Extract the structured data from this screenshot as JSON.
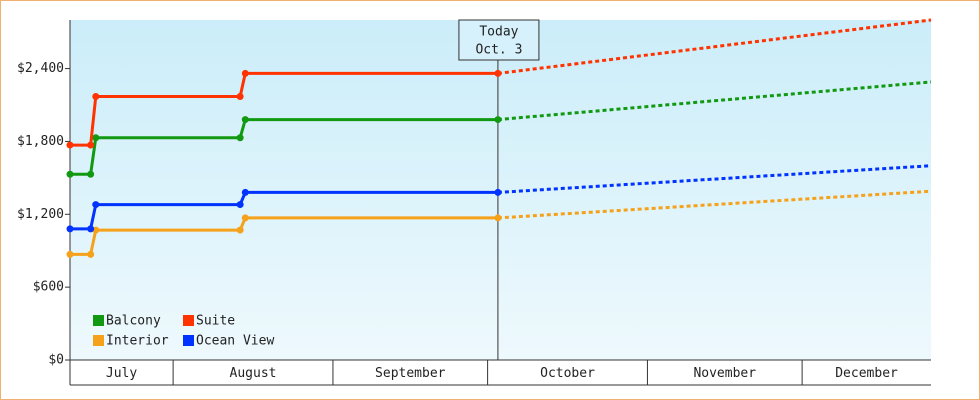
{
  "chart_data": {
    "type": "line",
    "categories": [
      "July",
      "August",
      "September",
      "October",
      "November",
      "December"
    ],
    "category_edges": [
      11,
      31,
      62,
      92,
      123,
      153,
      178
    ],
    "xlim": [
      11,
      178
    ],
    "ylim": [
      0,
      2800
    ],
    "yticks": [
      {
        "value": 0,
        "label": "$0"
      },
      {
        "value": 600,
        "label": "$600"
      },
      {
        "value": 1200,
        "label": "$1,200"
      },
      {
        "value": 1800,
        "label": "$1,800"
      },
      {
        "value": 2400,
        "label": "$2,400"
      }
    ],
    "today": {
      "x": 94,
      "label": [
        "Today",
        "Oct. 3"
      ]
    },
    "forecast_x": [
      94,
      178
    ],
    "series": [
      {
        "name": "Balcony",
        "color": "#119911",
        "x": [
          11,
          15,
          16,
          44,
          45,
          94
        ],
        "values": [
          1530,
          1530,
          1830,
          1830,
          1980,
          1980
        ],
        "forecast": [
          1980,
          2290
        ]
      },
      {
        "name": "Suite",
        "color": "#ff3300",
        "x": [
          11,
          15,
          16,
          44,
          45,
          94
        ],
        "values": [
          1770,
          1770,
          2170,
          2170,
          2360,
          2360
        ],
        "forecast": [
          2360,
          2800
        ]
      },
      {
        "name": "Interior",
        "color": "#f5a11a",
        "x": [
          11,
          15,
          16,
          44,
          45,
          94
        ],
        "values": [
          870,
          870,
          1070,
          1070,
          1170,
          1170
        ],
        "forecast": [
          1170,
          1390
        ]
      },
      {
        "name": "Ocean View",
        "color": "#0033ff",
        "x": [
          11,
          15,
          16,
          44,
          45,
          94
        ],
        "values": [
          1080,
          1080,
          1280,
          1280,
          1380,
          1380
        ],
        "forecast": [
          1380,
          1600
        ]
      }
    ]
  }
}
